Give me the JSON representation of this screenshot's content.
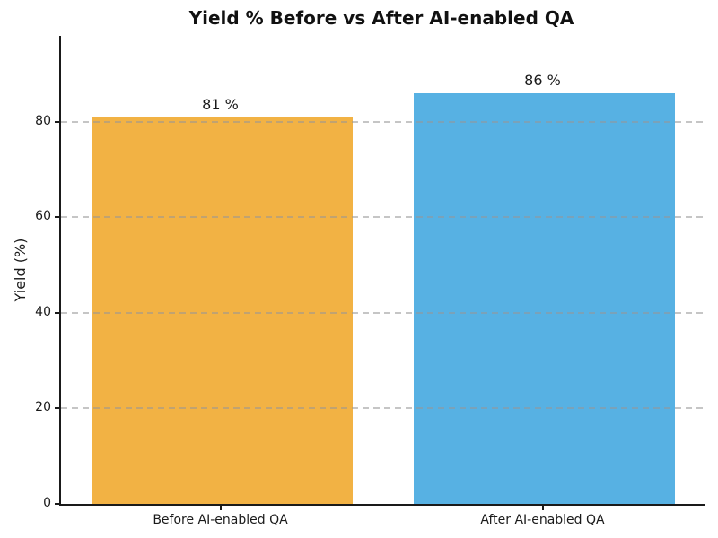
{
  "chart_data": {
    "type": "bar",
    "title": "Yield % Before vs After AI-enabled QA",
    "categories": [
      "Before AI-enabled QA",
      "After AI-enabled QA"
    ],
    "values": [
      81,
      86
    ],
    "value_labels": [
      "81 %",
      "86 %"
    ],
    "bar_colors": [
      "#F2B244",
      "#57B1E3"
    ],
    "xlabel": "",
    "ylabel": "Yield (%)",
    "ylim": [
      0,
      98
    ],
    "yticks": [
      0,
      20,
      40,
      60,
      80
    ],
    "grid": "horizontal-dashed",
    "gridline_color": "#c8c8c8",
    "legend": "none",
    "background_color": "#ffffff",
    "text_color": "#1a1a1a"
  }
}
